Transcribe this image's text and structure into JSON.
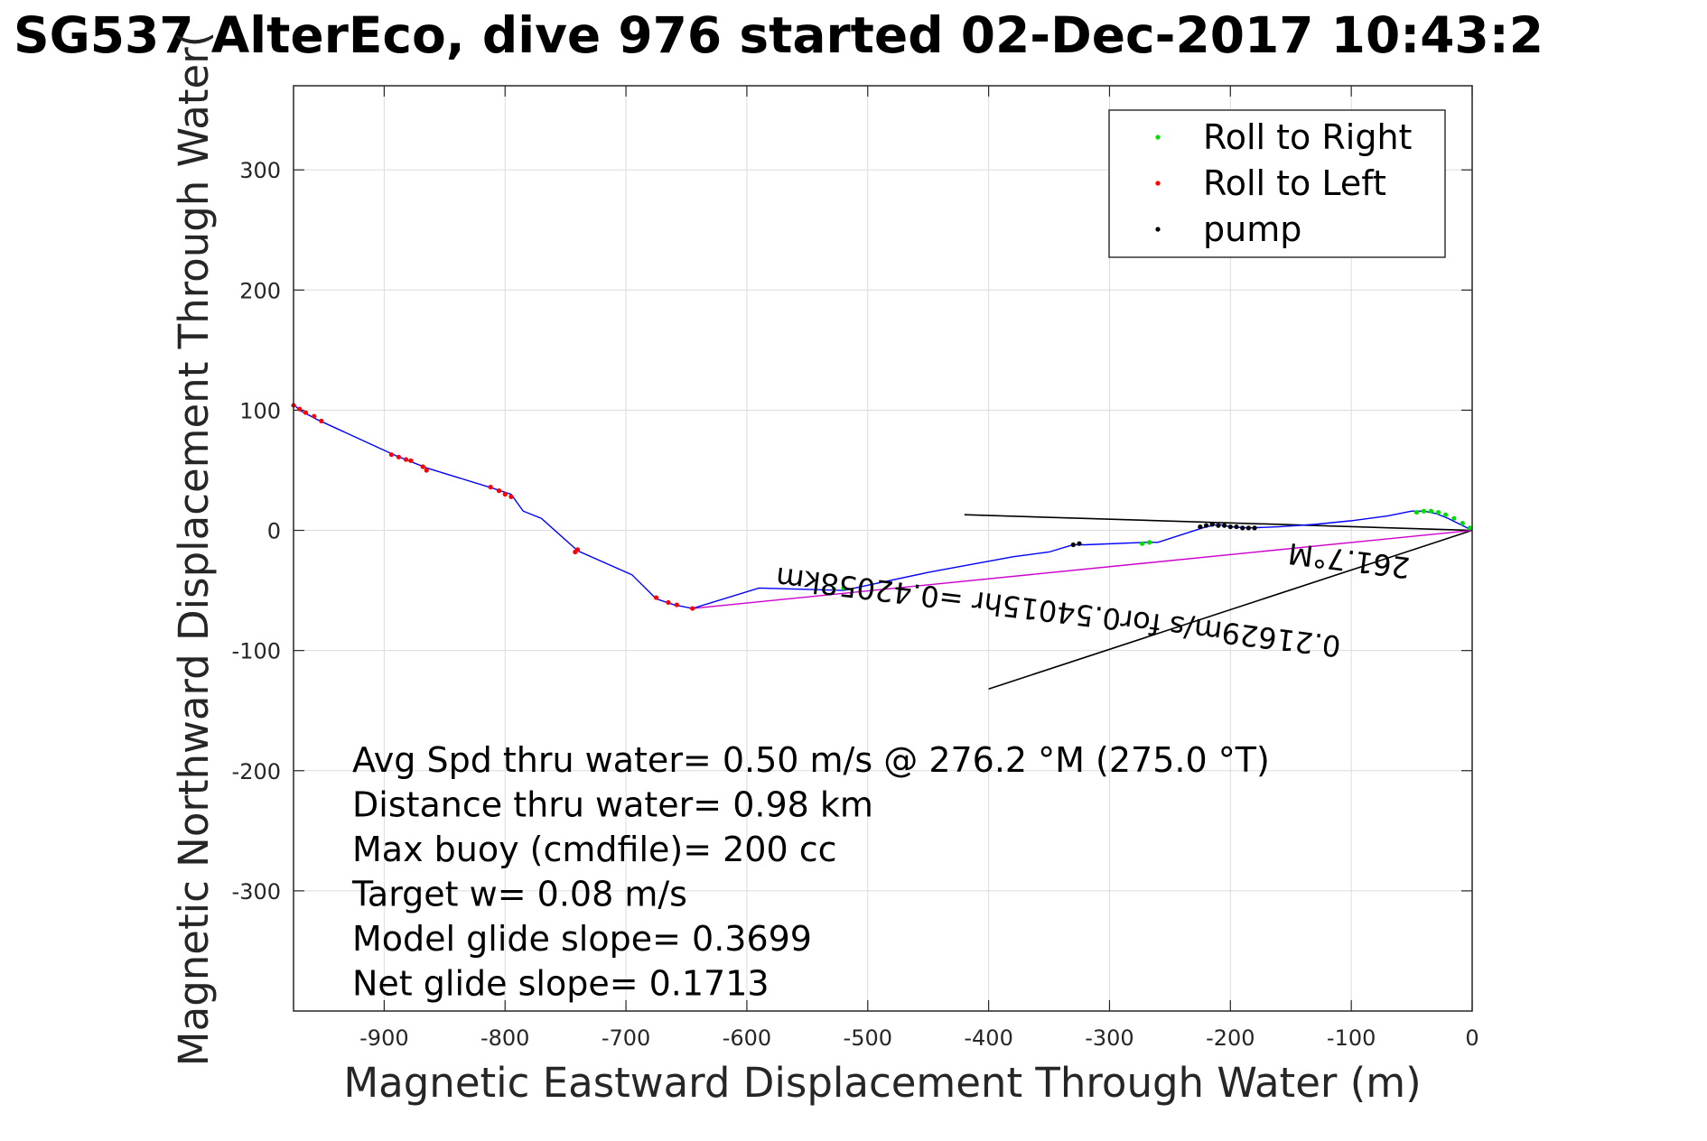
{
  "chart_data": {
    "type": "scatter",
    "title": "SG537 AlterEco, dive 976 started 02-Dec-2017 10:43:2",
    "xlabel": "Magnetic Eastward Displacement Through Water (m)",
    "ylabel": "Magnetic Northward Displacement Through Water(",
    "xlim": [
      -975,
      0
    ],
    "ylim": [
      -400,
      370
    ],
    "xticks": [
      -900,
      -800,
      -700,
      -600,
      -500,
      -400,
      -300,
      -200,
      -100,
      0
    ],
    "yticks": [
      300,
      200,
      100,
      0,
      -100,
      -200,
      -300
    ],
    "grid": true,
    "legend_position": "top-right",
    "legend": [
      "Roll to Right",
      "Roll to Left",
      "pump"
    ],
    "colors": {
      "track": "#0000ff",
      "roll_right": "#00dd00",
      "roll_left": "#ff0000",
      "pump": "#000000",
      "avg_vector": "#cc00cc",
      "reference_lines": "#000000"
    },
    "series": [
      {
        "name": "track",
        "x": [
          0,
          -10,
          -20,
          -30,
          -40,
          -50,
          -70,
          -100,
          -130,
          -160,
          -185,
          -200,
          -210,
          -220,
          -260,
          -270,
          -320,
          -330,
          -350,
          -380,
          -450,
          -520,
          -590,
          -645,
          -660,
          -675,
          -695,
          -740,
          -770,
          -785,
          -795,
          -810,
          -865,
          -880,
          -890,
          -955,
          -970,
          -975
        ],
        "y": [
          0,
          5,
          10,
          14,
          16,
          16,
          12,
          8,
          5,
          3,
          2,
          3,
          5,
          3,
          -10,
          -10,
          -12,
          -12,
          -18,
          -22,
          -35,
          -50,
          -48,
          -65,
          -62,
          -57,
          -37,
          -17,
          10,
          16,
          30,
          35,
          52,
          58,
          62,
          92,
          100,
          105
        ]
      },
      {
        "name": "Roll to Right",
        "x": [
          -2,
          -8,
          -15,
          -22,
          -28,
          -34,
          -40,
          -46,
          -267,
          -273,
          -520,
          -528
        ],
        "y": [
          2,
          6,
          10,
          13,
          15,
          16,
          16,
          15,
          -10,
          -11,
          -48,
          -49
        ]
      },
      {
        "name": "Roll to Left",
        "x": [
          -645,
          -658,
          -665,
          -675,
          -740,
          -742,
          -795,
          -800,
          -805,
          -812,
          -865,
          -868,
          -878,
          -882,
          -888,
          -894,
          -952,
          -958,
          -965,
          -970,
          -975
        ],
        "y": [
          -65,
          -62,
          -60,
          -56,
          -16,
          -18,
          28,
          30,
          33,
          36,
          50,
          53,
          58,
          59,
          61,
          63,
          91,
          95,
          98,
          101,
          104
        ]
      },
      {
        "name": "pump",
        "x": [
          -180,
          -185,
          -190,
          -195,
          -200,
          -205,
          -210,
          -215,
          -220,
          -225,
          -325,
          -330
        ],
        "y": [
          2,
          2,
          2,
          3,
          3,
          4,
          4,
          5,
          4,
          3,
          -11,
          -12
        ]
      }
    ],
    "avg_vector": {
      "x": [
        0,
        -645
      ],
      "y": [
        0,
        -65
      ]
    },
    "reference_lines": [
      {
        "x": [
          0,
          -420
        ],
        "y": [
          0,
          13
        ]
      },
      {
        "x": [
          0,
          -400
        ],
        "y": [
          0,
          -132
        ]
      }
    ],
    "annotations": {
      "rotated_upper": "261.7°M",
      "rotated_lower": "0.21629m/s for0.54015hr =0.42058km",
      "rotated_lower_heading": "261.7°M"
    },
    "legend_entries": [
      {
        "label": "Roll to Right",
        "color": "#00dd00"
      },
      {
        "label": "Roll to Left",
        "color": "#ff0000"
      },
      {
        "label": "pump",
        "color": "#000000"
      }
    ],
    "stats": [
      "Avg Spd thru water=  0.50 m/s @ 276.2 °M (275.0 °T)",
      "Distance thru water=  0.98 km",
      "Max buoy (cmdfile)= 200 cc",
      "Target w= 0.08 m/s",
      "Model glide slope= 0.3699",
      "Net glide slope= 0.1713"
    ]
  }
}
